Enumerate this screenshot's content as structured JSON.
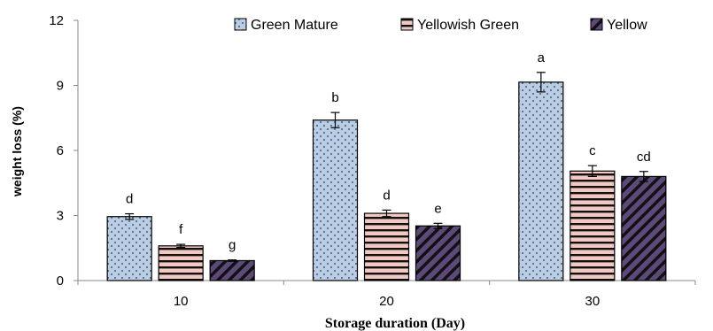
{
  "chart_data": {
    "type": "bar",
    "categories": [
      "10",
      "20",
      "30"
    ],
    "series": [
      {
        "name": "Green Mature",
        "values": [
          2.95,
          7.4,
          9.15
        ],
        "errors": [
          0.13,
          0.35,
          0.45
        ],
        "letters": [
          "d",
          "b",
          "a"
        ],
        "color": "#b9cde4",
        "pattern": "dots"
      },
      {
        "name": "Yellowish Green",
        "values": [
          1.6,
          3.1,
          5.05
        ],
        "errors": [
          0.07,
          0.15,
          0.25
        ],
        "letters": [
          "f",
          "d",
          "c"
        ],
        "color": "#f2c9c2",
        "pattern": "hstripes"
      },
      {
        "name": "Yellow",
        "values": [
          0.92,
          2.52,
          4.8
        ],
        "errors": [
          0.03,
          0.12,
          0.23
        ],
        "letters": [
          "g",
          "e",
          "cd"
        ],
        "color": "#5e4a7a",
        "pattern": "dstripes"
      }
    ],
    "xlabel": "Storage duration (Day)",
    "ylabel": "weight loss (%)",
    "ylim": [
      0,
      12
    ],
    "yticks": [
      "0",
      "3",
      "6",
      "9",
      "12"
    ],
    "grid": false,
    "legend_position": "top"
  }
}
